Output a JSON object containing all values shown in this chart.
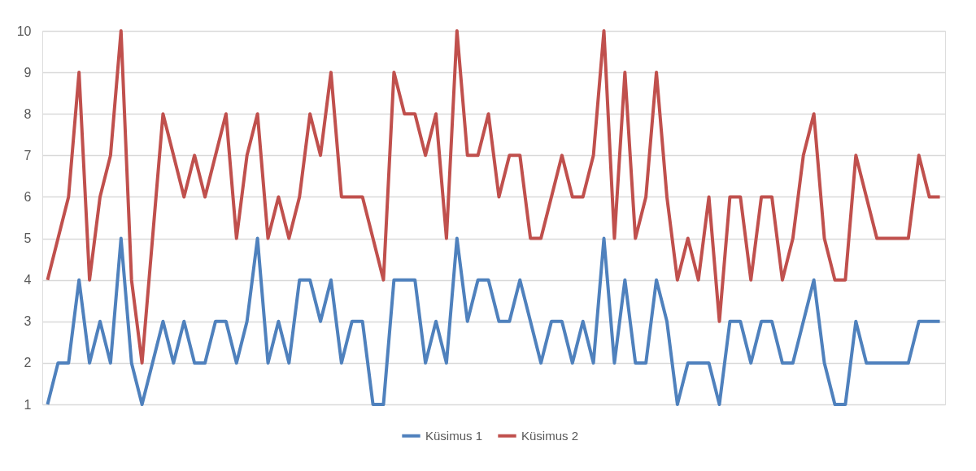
{
  "chart_data": {
    "type": "line",
    "categories": [
      null,
      null,
      null,
      null,
      null,
      null,
      null,
      null,
      null,
      null,
      null,
      null,
      null,
      null,
      null,
      null,
      null,
      null,
      null,
      null,
      null,
      null,
      null,
      null,
      null,
      null,
      null,
      null,
      null,
      null,
      null,
      null,
      null,
      null,
      null,
      null,
      null,
      null,
      null,
      null,
      null,
      null,
      null,
      null,
      null,
      null,
      null,
      null,
      null,
      null,
      null,
      null,
      null,
      null,
      null,
      null,
      null,
      null,
      null,
      null,
      null,
      null,
      null,
      null,
      null,
      null,
      null,
      null,
      null,
      null,
      null,
      null,
      null,
      null,
      null,
      null,
      null,
      null,
      null,
      null,
      null,
      null,
      null,
      null,
      null,
      null
    ],
    "series": [
      {
        "name": "Küsimus 1",
        "color": "#4f81bd",
        "values": [
          1,
          2,
          2,
          4,
          2,
          3,
          2,
          5,
          2,
          1,
          2,
          3,
          2,
          3,
          2,
          2,
          3,
          3,
          2,
          3,
          5,
          2,
          3,
          2,
          4,
          4,
          3,
          4,
          2,
          3,
          3,
          1,
          1,
          4,
          4,
          4,
          2,
          3,
          2,
          5,
          3,
          4,
          4,
          3,
          3,
          4,
          3,
          2,
          3,
          3,
          2,
          3,
          2,
          5,
          2,
          4,
          2,
          2,
          4,
          3,
          1,
          2,
          2,
          2,
          1,
          3,
          3,
          2,
          3,
          3,
          2,
          2,
          3,
          4,
          2,
          1,
          1,
          3,
          2,
          2,
          2,
          2,
          2,
          3,
          3,
          3
        ]
      },
      {
        "name": "Küsimus 2",
        "color": "#c0504d",
        "values": [
          4,
          5,
          6,
          9,
          4,
          6,
          7,
          10,
          4,
          2,
          5,
          8,
          7,
          6,
          7,
          6,
          7,
          8,
          5,
          7,
          8,
          5,
          6,
          5,
          6,
          8,
          7,
          9,
          6,
          6,
          6,
          5,
          4,
          9,
          8,
          8,
          7,
          8,
          5,
          10,
          7,
          7,
          8,
          6,
          7,
          7,
          5,
          5,
          6,
          7,
          6,
          6,
          7,
          10,
          5,
          9,
          5,
          6,
          9,
          6,
          4,
          5,
          4,
          6,
          3,
          6,
          6,
          4,
          6,
          6,
          4,
          5,
          7,
          8,
          5,
          4,
          4,
          7,
          6,
          5,
          5,
          5,
          5,
          7,
          6,
          6
        ]
      }
    ],
    "ylim": [
      1,
      10
    ],
    "yticks": [
      1,
      2,
      3,
      4,
      5,
      6,
      7,
      8,
      9,
      10
    ],
    "grid": "y",
    "legend": "bottom",
    "tick_labels": "y",
    "line_style": "solid",
    "marker": "none"
  }
}
